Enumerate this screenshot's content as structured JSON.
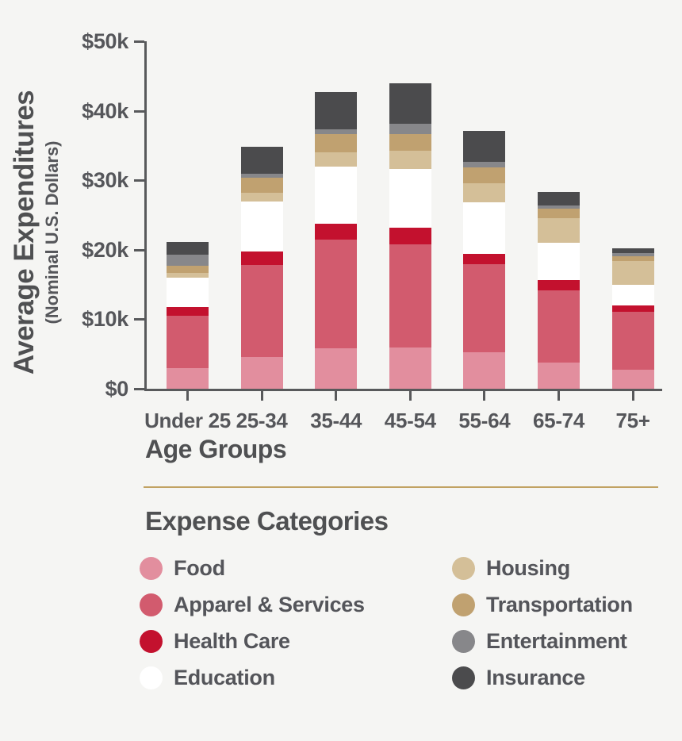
{
  "page": {
    "background_color": "#f5f5f3",
    "axis_color": "#58595b",
    "text_color": "#54555a",
    "divider_color": "#c1a262"
  },
  "chart": {
    "y_axis_title": "Average Expenditures",
    "y_axis_subtitle": "(Nominal U.S. Dollars)",
    "x_axis_title": "Age Groups",
    "y_ticks": [
      {
        "label": "$50k",
        "value": 50
      },
      {
        "label": "$40k",
        "value": 40
      },
      {
        "label": "$30k",
        "value": 30
      },
      {
        "label": "$20k",
        "value": 20
      },
      {
        "label": "$10k",
        "value": 10
      },
      {
        "label": "$0",
        "value": 0
      }
    ]
  },
  "chart_data": {
    "type": "bar",
    "stacked": true,
    "title": "",
    "xlabel": "Age Groups",
    "ylabel": "Average Expenditures (Nominal U.S. Dollars)",
    "ylim": [
      0,
      50000
    ],
    "y_tick_labels": [
      "$0",
      "$10k",
      "$20k",
      "$30k",
      "$40k",
      "$50k"
    ],
    "grid": false,
    "legend_position": "bottom",
    "values_unit": "thousands of nominal U.S. dollars",
    "categories": [
      "Under 25",
      "25-34",
      "35-44",
      "45-54",
      "55-64",
      "65-74",
      "75+"
    ],
    "series": [
      {
        "name": "Food",
        "color": "#e28e9e",
        "values": [
          3.0,
          4.6,
          5.8,
          5.9,
          5.2,
          3.8,
          2.7
        ]
      },
      {
        "name": "Apparel & Services",
        "color": "#d25b6e",
        "values": [
          7.5,
          13.2,
          15.7,
          14.9,
          12.7,
          10.4,
          8.4
        ]
      },
      {
        "name": "Health Care",
        "color": "#c3112e",
        "values": [
          1.3,
          2.0,
          2.3,
          2.4,
          1.5,
          1.4,
          0.9
        ]
      },
      {
        "name": "Education",
        "color": "#ffffff",
        "values": [
          4.2,
          7.1,
          8.2,
          8.4,
          7.4,
          5.4,
          2.9
        ]
      },
      {
        "name": "Housing",
        "color": "#d4bf98",
        "values": [
          0.7,
          1.3,
          2.0,
          2.6,
          2.8,
          3.5,
          3.5
        ]
      },
      {
        "name": "Transportation",
        "color": "#c0a170",
        "values": [
          1.0,
          2.2,
          2.7,
          2.5,
          2.2,
          1.4,
          0.6
        ]
      },
      {
        "name": "Entertainment",
        "color": "#87878a",
        "values": [
          1.6,
          0.5,
          0.7,
          1.4,
          0.8,
          0.5,
          0.5
        ]
      },
      {
        "name": "Insurance",
        "color": "#4b4b4d",
        "values": [
          1.8,
          3.9,
          5.3,
          5.8,
          4.5,
          1.9,
          0.7
        ]
      }
    ]
  },
  "legend": {
    "heading": "Expense Categories",
    "columns": [
      [
        {
          "label": "Food",
          "color": "#e28e9e"
        },
        {
          "label": "Apparel & Services",
          "color": "#d25b6e"
        },
        {
          "label": "Health Care",
          "color": "#c3112e"
        },
        {
          "label": "Education",
          "color": "#ffffff"
        }
      ],
      [
        {
          "label": "Housing",
          "color": "#d4bf98"
        },
        {
          "label": "Transportation",
          "color": "#c0a170"
        },
        {
          "label": "Entertainment",
          "color": "#87878a"
        },
        {
          "label": "Insurance",
          "color": "#4b4b4d"
        }
      ]
    ]
  }
}
